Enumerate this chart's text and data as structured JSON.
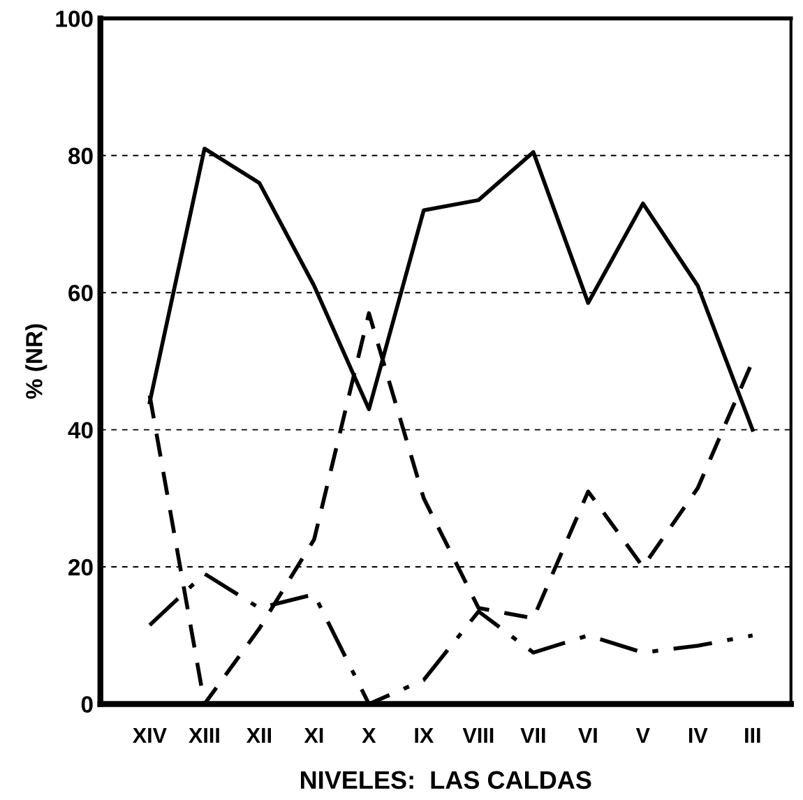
{
  "chart_data": {
    "type": "line",
    "xlabel": "NIVELES:  LAS CALDAS",
    "ylabel": "% (NR)",
    "categories": [
      "XIV",
      "XIII",
      "XII",
      "XI",
      "X",
      "IX",
      "VIII",
      "VII",
      "VI",
      "V",
      "IV",
      "III"
    ],
    "series": [
      {
        "color": "#000000",
        "line_style": "solid",
        "values": [
          44,
          81,
          76,
          61,
          43,
          72,
          73.5,
          80.5,
          58.5,
          73,
          61,
          40
        ]
      },
      {
        "color": "#000000",
        "line_style": "dashed",
        "values": [
          45,
          0,
          11,
          24,
          57,
          30,
          14,
          12.5,
          31,
          20,
          31.5,
          50
        ]
      },
      {
        "color": "#000000",
        "line_style": "dashdot",
        "values": [
          11.5,
          19,
          14,
          16,
          0,
          3.5,
          13.5,
          7.5,
          10,
          7.5,
          8.5,
          10
        ]
      }
    ],
    "ylim": [
      0,
      100
    ],
    "yticks": [
      0,
      20,
      40,
      60,
      80,
      100
    ],
    "grid": "y",
    "legend": false,
    "marker": "none"
  }
}
